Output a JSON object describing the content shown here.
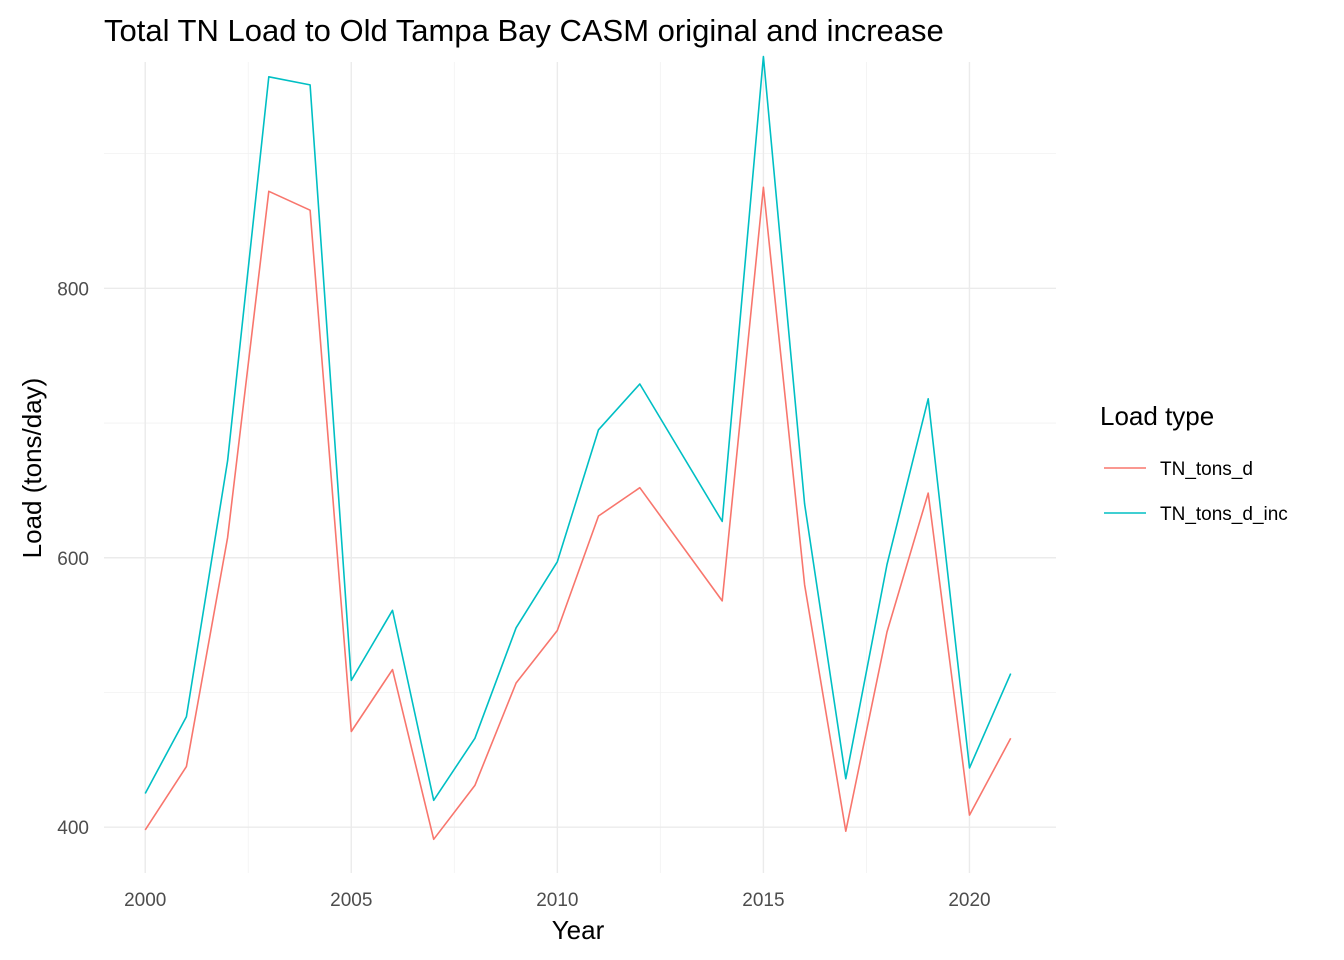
{
  "chart_data": {
    "type": "line",
    "title": "Total TN Load to Old Tampa Bay CASM original and increase",
    "xlabel": "Year",
    "ylabel": "Load (tons/day)",
    "xlim": [
      1999.0,
      2022.1
    ],
    "ylim": [
      366,
      968
    ],
    "x_ticks": [
      2000,
      2005,
      2010,
      2015,
      2020
    ],
    "y_ticks": [
      400,
      600,
      800
    ],
    "grid": true,
    "legend": {
      "title": "Load type",
      "position": "right"
    },
    "x": [
      2000,
      2001,
      2002,
      2003,
      2004,
      2005,
      2006,
      2007,
      2008,
      2009,
      2010,
      2011,
      2012,
      2014,
      2015,
      2016,
      2017,
      2018,
      2019,
      2020,
      2021
    ],
    "series": [
      {
        "name": "TN_tons_d",
        "color": "#F8766D",
        "values": [
          398,
          445,
          615,
          872,
          858,
          471,
          517,
          391,
          431,
          507,
          546,
          631,
          652,
          568,
          875,
          580,
          397,
          545,
          648,
          409,
          466
        ]
      },
      {
        "name": "TN_tons_d_inc",
        "color": "#00BFC4",
        "values": [
          425,
          482,
          672,
          957,
          951,
          509,
          561,
          420,
          466,
          548,
          597,
          695,
          729,
          627,
          972,
          640,
          436,
          595,
          718,
          444,
          514
        ]
      }
    ]
  }
}
